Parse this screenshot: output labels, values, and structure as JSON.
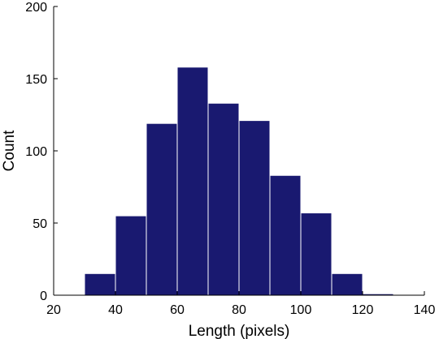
{
  "chart_data": {
    "type": "bar",
    "bins": [
      {
        "start": 30,
        "end": 40,
        "count": 15
      },
      {
        "start": 40,
        "end": 50,
        "count": 55
      },
      {
        "start": 50,
        "end": 60,
        "count": 119
      },
      {
        "start": 60,
        "end": 70,
        "count": 158
      },
      {
        "start": 70,
        "end": 80,
        "count": 133
      },
      {
        "start": 80,
        "end": 90,
        "count": 121
      },
      {
        "start": 90,
        "end": 100,
        "count": 83
      },
      {
        "start": 100,
        "end": 110,
        "count": 57
      },
      {
        "start": 110,
        "end": 120,
        "count": 15
      },
      {
        "start": 120,
        "end": 130,
        "count": 1
      }
    ],
    "xlabel": "Length (pixels)",
    "ylabel": "Count",
    "xlim": [
      20,
      140
    ],
    "ylim": [
      0,
      200
    ],
    "xticks": [
      "20",
      "40",
      "60",
      "80",
      "100",
      "120",
      "140"
    ],
    "yticks": [
      "0",
      "50",
      "100",
      "150",
      "200"
    ],
    "grid": false,
    "bar_color": "#191970",
    "bar_edge_color": "#ffffff"
  }
}
